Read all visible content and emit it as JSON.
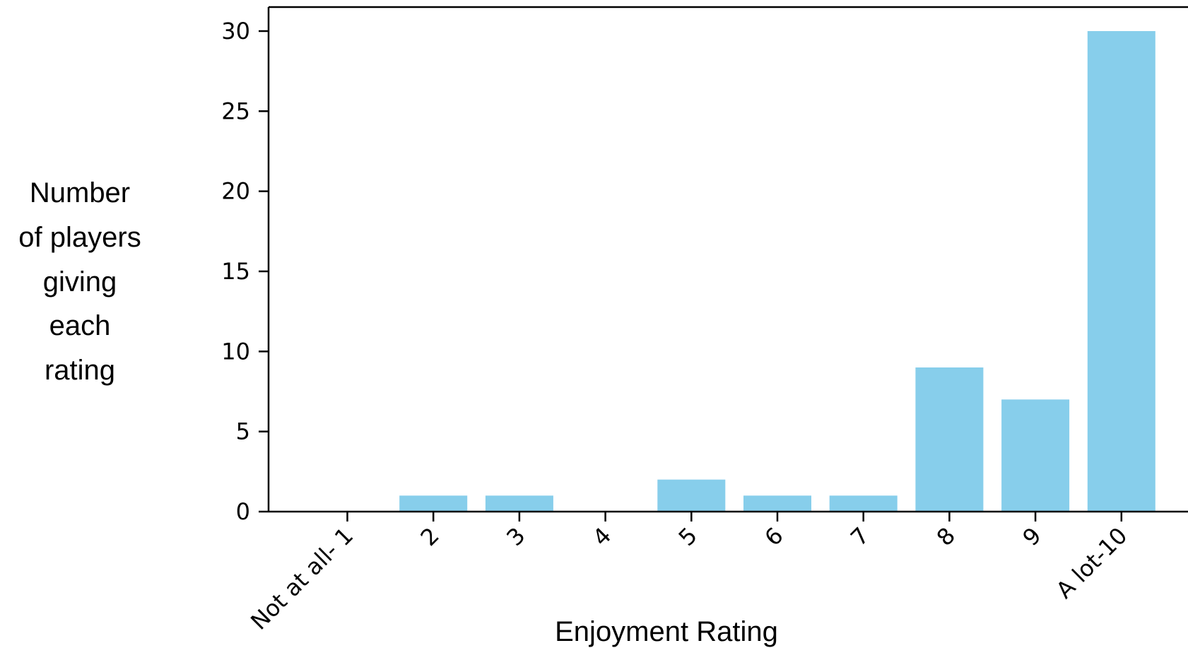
{
  "chart_data": {
    "type": "bar",
    "title": "",
    "xlabel": "Enjoyment Rating",
    "ylabel_lines": [
      "Number",
      "of players",
      "giving",
      "each",
      "rating"
    ],
    "categories": [
      "Not at all- 1",
      "2",
      "3",
      "4",
      "5",
      "6",
      "7",
      "8",
      "9",
      "A lot-10"
    ],
    "values": [
      0,
      1,
      1,
      0,
      2,
      1,
      1,
      9,
      7,
      30
    ],
    "ylim": [
      0,
      31.5
    ],
    "yticks": [
      0,
      5,
      10,
      15,
      20,
      25,
      30
    ],
    "bar_color": "#87ceeb",
    "grid": false,
    "legend": "none"
  }
}
